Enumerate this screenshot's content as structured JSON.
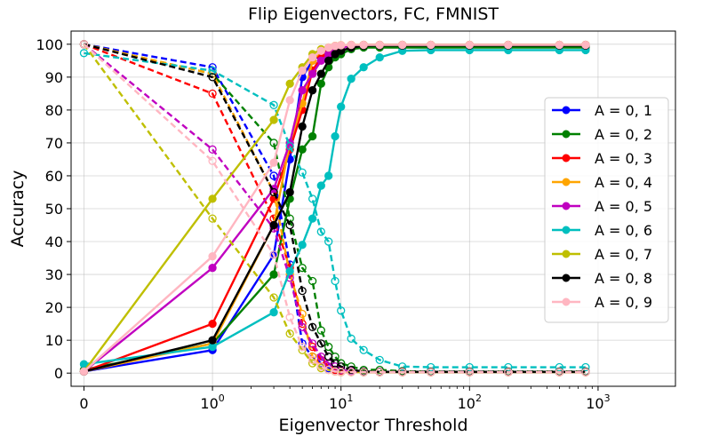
{
  "chart_data": {
    "type": "line",
    "title": "Flip Eigenvectors, FC, FMNIST",
    "xlabel": "Eigenvector Threshold",
    "ylabel": "Accuracy",
    "xscale": "symlog",
    "xlim": [
      -0.1,
      4000
    ],
    "ylim": [
      -4,
      104
    ],
    "yticks": [
      0,
      10,
      20,
      30,
      40,
      50,
      60,
      70,
      80,
      90,
      100
    ],
    "xticks": [
      {
        "value": 0,
        "label": "0",
        "exp": ""
      },
      {
        "value": 1,
        "label": "10",
        "exp": "0"
      },
      {
        "value": 10,
        "label": "10",
        "exp": "1"
      },
      {
        "value": 100,
        "label": "10",
        "exp": "2"
      },
      {
        "value": 1000,
        "label": "10",
        "exp": "3"
      }
    ],
    "grid": true,
    "legend_position": "center-right",
    "solid_style": "filled markers, solid line",
    "dashed_style": "open markers, dashed line",
    "x": [
      0,
      1,
      3,
      4,
      5,
      6,
      7,
      8,
      9,
      10,
      12,
      15,
      20,
      30,
      50,
      100,
      200,
      500,
      800
    ],
    "series": [
      {
        "name": "A = 0, 1",
        "color": "#0000ff",
        "solid": [
          0.5,
          7,
          36,
          65,
          90,
          95,
          97,
          98,
          99,
          99.5,
          99.7,
          99.8,
          99.8,
          99.8,
          99.8,
          99.8,
          99.8,
          99.8,
          99.8
        ],
        "dashed": [
          100,
          93,
          60,
          33,
          9,
          5,
          3,
          1.5,
          1,
          0.8,
          0.5,
          0.3,
          0.3,
          0.3,
          0.3,
          0.3,
          0.3,
          0.3,
          0.3
        ]
      },
      {
        "name": "A = 0, 2",
        "color": "#008000",
        "solid": [
          1,
          9,
          30,
          53,
          68,
          72,
          88,
          93,
          96,
          97,
          98.5,
          99,
          99,
          99,
          99,
          99,
          99,
          99,
          99
        ],
        "dashed": [
          100,
          91,
          70,
          47,
          32,
          28,
          13,
          8,
          5,
          3,
          2,
          1,
          1,
          0.6,
          0.5,
          0.5,
          0.5,
          0.5,
          0.5
        ]
      },
      {
        "name": "A = 0, 3",
        "color": "#ff0000",
        "solid": [
          0.5,
          15,
          53,
          68,
          80,
          92,
          96,
          98,
          99,
          99.5,
          99.7,
          99.8,
          99.8,
          99.8,
          99.8,
          99.8,
          99.8,
          99.8,
          99.8
        ],
        "dashed": [
          100,
          85,
          47,
          32,
          15,
          8,
          4,
          2,
          1,
          0.8,
          0.5,
          0.3,
          0.3,
          0.3,
          0.3,
          0.3,
          0.3,
          0.3,
          0.3
        ]
      },
      {
        "name": "A = 0, 4",
        "color": "#ffa500",
        "solid": [
          0.5,
          9,
          45,
          70,
          82,
          95,
          98,
          99,
          99.5,
          99.7,
          99.8,
          99.8,
          99.8,
          99.8,
          99.8,
          99.8,
          99.8,
          99.8,
          99.8
        ],
        "dashed": [
          100,
          91,
          55,
          30,
          18,
          5,
          2,
          1,
          0.5,
          0.3,
          0.3,
          0.3,
          0.3,
          0.3,
          0.3,
          0.3,
          0.3,
          0.3,
          0.3
        ]
      },
      {
        "name": "A = 0, 5",
        "color": "#c000c0",
        "solid": [
          0.5,
          32,
          56,
          70,
          86,
          91,
          95,
          97,
          98,
          99,
          99.5,
          99.6,
          99.6,
          99.6,
          99.6,
          99.6,
          99.6,
          99.6,
          99.6
        ],
        "dashed": [
          100,
          68,
          44,
          29,
          14,
          9,
          5,
          3,
          2,
          1,
          0.5,
          0.4,
          0.4,
          0.4,
          0.4,
          0.4,
          0.4,
          0.4,
          0.4
        ]
      },
      {
        "name": "A = 0, 6",
        "color": "#00bfbf",
        "solid": [
          2.7,
          8,
          18.5,
          31,
          39,
          47,
          57,
          60,
          72,
          81,
          89.5,
          93,
          96,
          98,
          98.2,
          98.2,
          98.2,
          98.2,
          98.2
        ],
        "dashed": [
          97.3,
          92,
          81.5,
          69,
          61,
          53,
          43,
          40,
          28,
          19,
          10.5,
          7,
          4,
          2,
          1.8,
          1.8,
          1.8,
          1.8,
          1.8
        ]
      },
      {
        "name": "A = 0, 7",
        "color": "#bfbf00",
        "solid": [
          0.5,
          53,
          77,
          88,
          93,
          97,
          98.5,
          99,
          99.5,
          99.7,
          99.8,
          99.8,
          99.8,
          99.8,
          99.8,
          99.8,
          99.8,
          99.8,
          99.8
        ],
        "dashed": [
          100,
          47,
          23,
          12,
          7,
          3,
          1.5,
          1,
          0.5,
          0.3,
          0.3,
          0.3,
          0.3,
          0.3,
          0.3,
          0.3,
          0.3,
          0.3,
          0.3
        ]
      },
      {
        "name": "A = 0, 8",
        "color": "#000000",
        "solid": [
          0.5,
          10,
          45,
          55,
          75,
          86,
          91,
          95,
          97,
          98,
          99,
          99.5,
          99.6,
          99.6,
          99.6,
          99.6,
          99.6,
          99.6,
          99.6
        ],
        "dashed": [
          100,
          90,
          55,
          45,
          25,
          14,
          9,
          5,
          3,
          2,
          1,
          0.5,
          0.4,
          0.4,
          0.4,
          0.4,
          0.4,
          0.4,
          0.4
        ]
      },
      {
        "name": "A = 0, 9",
        "color": "#ffb6c1",
        "solid": [
          0.5,
          35.5,
          64,
          83,
          92,
          96,
          98,
          99,
          99.5,
          99.7,
          99.8,
          99.8,
          99.8,
          99.8,
          99.8,
          99.8,
          99.8,
          99.8,
          99.8
        ],
        "dashed": [
          100,
          64.5,
          36,
          17,
          8,
          4,
          2,
          1,
          0.5,
          0.3,
          0.3,
          0.3,
          0.3,
          0.3,
          0.3,
          0.3,
          0.3,
          0.3,
          0.3
        ]
      }
    ]
  }
}
